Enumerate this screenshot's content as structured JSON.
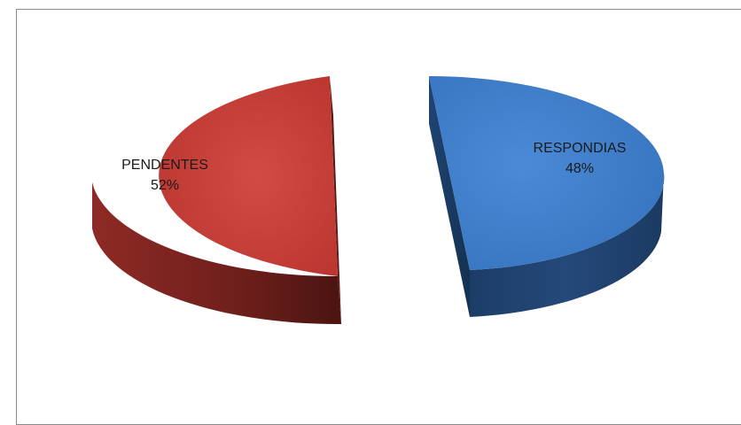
{
  "chart_data": {
    "type": "pie",
    "style": "3d-exploded",
    "title": "",
    "slices": [
      {
        "label": "PENDENTES",
        "percent_label": "52%",
        "value": 52,
        "color": "#c43b34"
      },
      {
        "label": "RESPONDIAS",
        "percent_label": "48%",
        "value": 48,
        "color": "#3e7bc6"
      }
    ],
    "legend": "none"
  }
}
